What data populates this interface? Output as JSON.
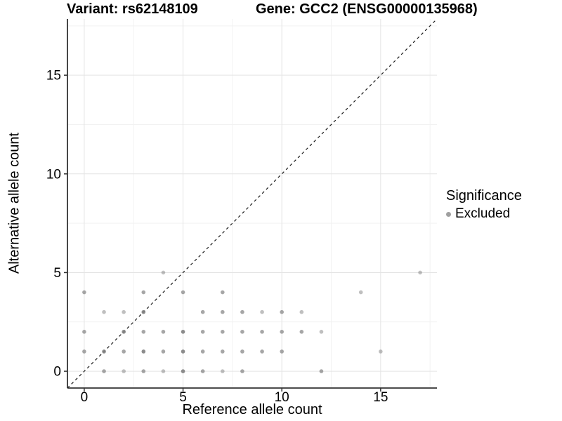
{
  "header": {
    "variant_title": "Variant: rs62148109",
    "gene_title": "Gene: GCC2 (ENSG00000135968)"
  },
  "legend": {
    "title": "Significance",
    "items": [
      {
        "label": "Excluded",
        "color": "#a0a0a0"
      }
    ]
  },
  "colors": {
    "point_base": "#808080",
    "grid_major": "#e4e4e4",
    "grid_minor": "#f2f2f2",
    "axis_line": "#333333",
    "identity_line": "#1a1a1a",
    "text": "#000000"
  },
  "chart_data": {
    "type": "scatter",
    "xlabel": "Reference allele count",
    "ylabel": "Alternative allele count",
    "xlim": [
      -0.85,
      17.85
    ],
    "ylim": [
      -0.85,
      17.85
    ],
    "x_ticks": [
      0,
      5,
      10,
      15
    ],
    "y_ticks": [
      0,
      5,
      10,
      15
    ],
    "x_minor": [
      2.5,
      7.5,
      12.5,
      17.5
    ],
    "y_minor": [
      2.5,
      7.5,
      12.5,
      17.5
    ],
    "grid": "major+minor",
    "legend_position": "right",
    "identity_line": {
      "style": "dashed",
      "slope": 1,
      "intercept": 0
    },
    "series": [
      {
        "name": "Excluded",
        "color": "#808080",
        "points_xya": [
          [
            1,
            0,
            0.7
          ],
          [
            2,
            0,
            0.5
          ],
          [
            3,
            0,
            0.7
          ],
          [
            4,
            0,
            0.5
          ],
          [
            5,
            0,
            0.9
          ],
          [
            6,
            0,
            0.7
          ],
          [
            7,
            0,
            0.5
          ],
          [
            8,
            0,
            0.7
          ],
          [
            12,
            0,
            0.7
          ],
          [
            0,
            1,
            0.7
          ],
          [
            1,
            1,
            0.9
          ],
          [
            2,
            1,
            0.7
          ],
          [
            3,
            1,
            0.9
          ],
          [
            4,
            1,
            0.7
          ],
          [
            5,
            1,
            0.9
          ],
          [
            6,
            1,
            0.7
          ],
          [
            7,
            1,
            0.7
          ],
          [
            8,
            1,
            0.7
          ],
          [
            9,
            1,
            0.7
          ],
          [
            10,
            1,
            0.7
          ],
          [
            15,
            1,
            0.5
          ],
          [
            0,
            2,
            0.7
          ],
          [
            2,
            2,
            0.9
          ],
          [
            3,
            2,
            0.7
          ],
          [
            4,
            2,
            0.7
          ],
          [
            5,
            2,
            0.9
          ],
          [
            6,
            2,
            0.7
          ],
          [
            7,
            2,
            0.7
          ],
          [
            8,
            2,
            0.7
          ],
          [
            9,
            2,
            0.7
          ],
          [
            10,
            2,
            0.7
          ],
          [
            11,
            2,
            0.7
          ],
          [
            12,
            2,
            0.5
          ],
          [
            1,
            3,
            0.5
          ],
          [
            2,
            3,
            0.5
          ],
          [
            3,
            3,
            0.9
          ],
          [
            6,
            3,
            0.7
          ],
          [
            7,
            3,
            0.7
          ],
          [
            8,
            3,
            0.7
          ],
          [
            9,
            3,
            0.5
          ],
          [
            10,
            3,
            0.7
          ],
          [
            11,
            3,
            0.5
          ],
          [
            0,
            4,
            0.7
          ],
          [
            3,
            4,
            0.7
          ],
          [
            5,
            4,
            0.7
          ],
          [
            7,
            4,
            0.7
          ],
          [
            14,
            4,
            0.5
          ],
          [
            4,
            5,
            0.5
          ],
          [
            17,
            5,
            0.5
          ]
        ]
      }
    ]
  }
}
